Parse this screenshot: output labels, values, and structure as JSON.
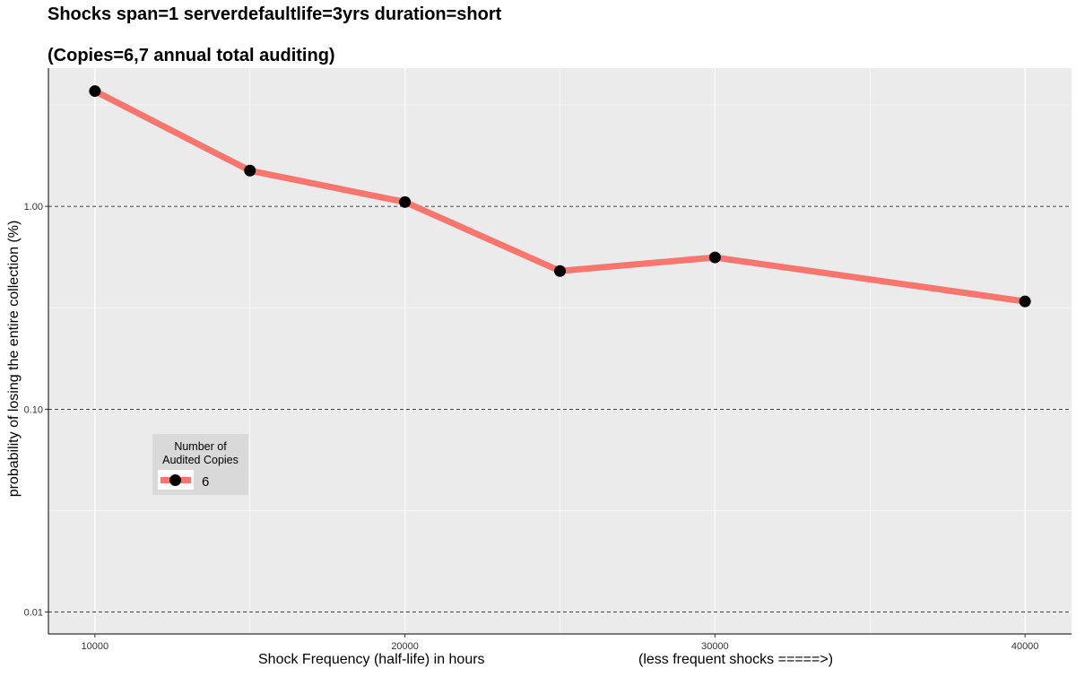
{
  "titles": {
    "line1": "Shocks span=1 serverdefaultlife=3yrs duration=short",
    "line2": "(Copies=6,7 annual total auditing)"
  },
  "axes": {
    "ylabel": "probability of losing the entire collection (%)",
    "xlabel": "Shock Frequency (half-life) in hours",
    "xlabel_note": "(less frequent shocks =====>)"
  },
  "legend": {
    "title_line1": "Number of",
    "title_line2": "Audited Copies",
    "label": "6"
  },
  "colors": {
    "series": "#f8766d",
    "point": "#000000",
    "panel": "#ebebeb",
    "grid": "#ffffff",
    "hline": "#000000"
  },
  "chart_data": {
    "type": "line",
    "title": "Shocks span=1 serverdefaultlife=3yrs duration=short",
    "subtitle": "(Copies=6,7 annual total auditing)",
    "xlabel": "Shock Frequency (half-life) in hours",
    "ylabel": "probability of losing the entire collection (%)",
    "y_scale": "log10",
    "xlim": [
      8500,
      41500
    ],
    "ylim": [
      0.0078,
      4.8
    ],
    "x_ticks": [
      10000,
      20000,
      30000,
      40000
    ],
    "x_tick_labels": [
      "10000",
      "20000",
      "30000",
      "40000"
    ],
    "y_ticks": [
      0.01,
      0.1,
      1.0
    ],
    "y_tick_labels": [
      "0.01",
      "0.10",
      "1.00"
    ],
    "reference_lines_y": [
      0.01,
      0.1,
      1.0
    ],
    "grid": true,
    "legend_position": "left-bottom (inside panel)",
    "series": [
      {
        "name": "6",
        "x": [
          10000,
          15000,
          20000,
          25000,
          30000,
          40000
        ],
        "y": [
          3.7,
          1.5,
          1.05,
          0.48,
          0.56,
          0.34
        ]
      }
    ]
  }
}
